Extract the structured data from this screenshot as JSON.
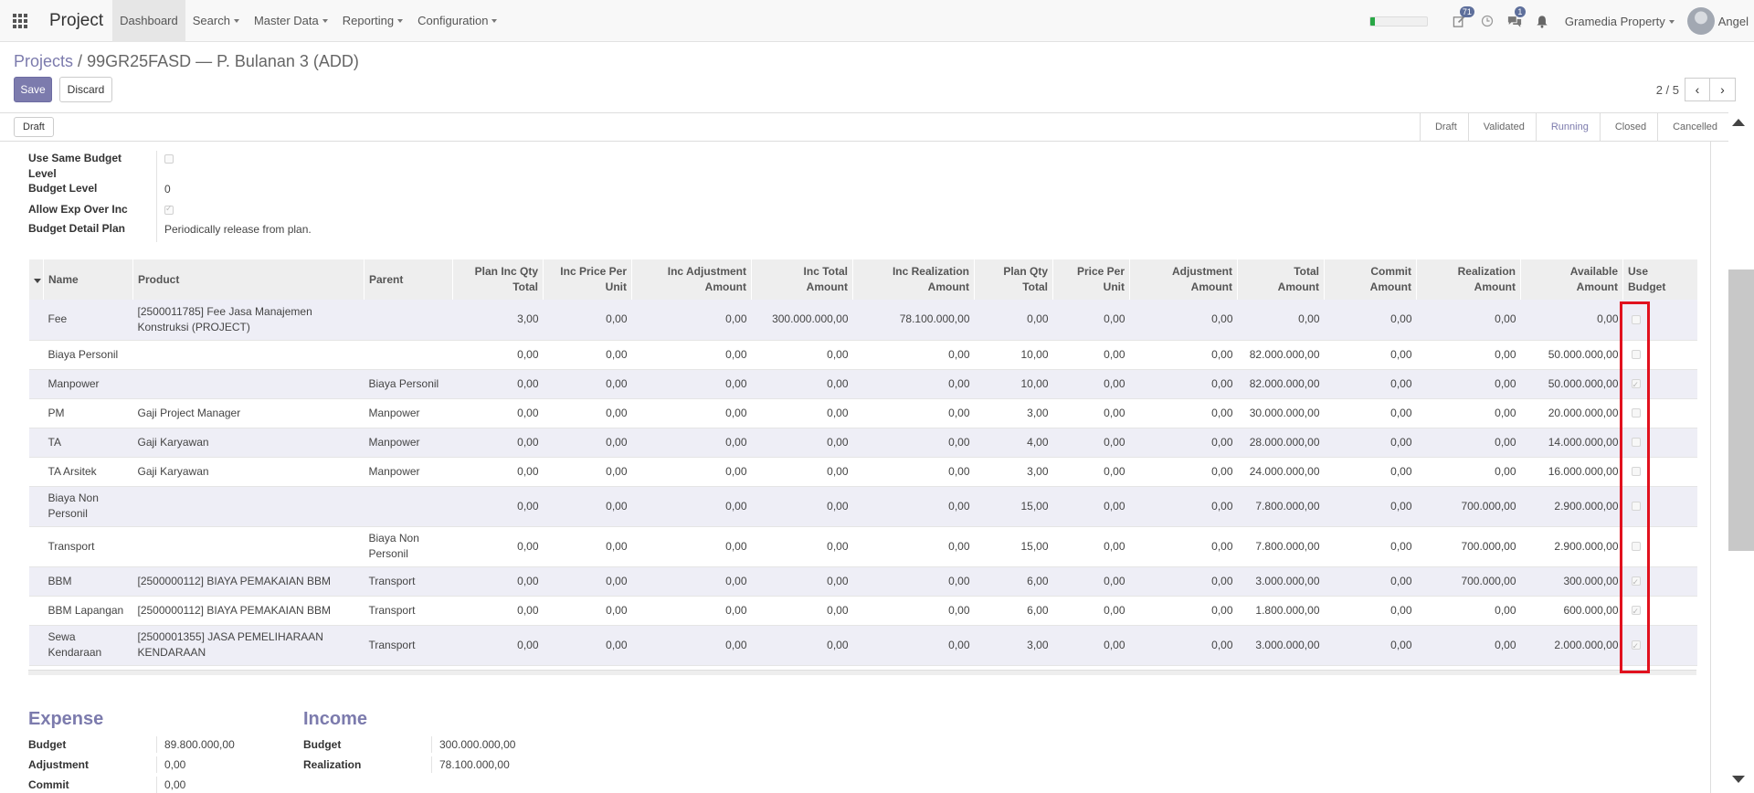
{
  "navbar": {
    "app_title": "Project",
    "menu": [
      {
        "label": "Dashboard"
      },
      {
        "label": "Search"
      },
      {
        "label": "Master Data"
      },
      {
        "label": "Reporting"
      },
      {
        "label": "Configuration"
      }
    ],
    "progress_fraction": 0.08,
    "activity_badge": "71",
    "messages_badge": "1",
    "company": "Gramedia Property",
    "user": "Angel"
  },
  "breadcrumb": {
    "parent": "Projects",
    "separator": "/",
    "current": "99GR25FASD — P. Bulanan 3 (ADD)"
  },
  "buttons": {
    "save": "Save",
    "discard": "Discard",
    "draft": "Draft"
  },
  "pager": {
    "value": "2 / 5"
  },
  "stages": [
    {
      "label": "Draft"
    },
    {
      "label": "Validated"
    },
    {
      "label": "Running"
    },
    {
      "label": "Closed"
    },
    {
      "label": "Cancelled"
    }
  ],
  "fields": {
    "use_same_budget_level": {
      "label_line1": "Use Same Budget",
      "label_line2": "Level",
      "checked": false
    },
    "budget_level": {
      "label": "Budget Level",
      "value": "0"
    },
    "allow_exp_over_inc": {
      "label": "Allow Exp Over Inc",
      "checked": true
    },
    "budget_detail_plan": {
      "label": "Budget Detail Plan",
      "value": "Periodically release from plan."
    }
  },
  "table": {
    "headers": [
      {
        "line1": "Name",
        "line2": ""
      },
      {
        "line1": "Product",
        "line2": ""
      },
      {
        "line1": "Parent",
        "line2": ""
      },
      {
        "line1": "Plan Inc Qty",
        "line2": "Total"
      },
      {
        "line1": "Inc Price Per",
        "line2": "Unit"
      },
      {
        "line1": "Inc Adjustment",
        "line2": "Amount"
      },
      {
        "line1": "Inc Total",
        "line2": "Amount"
      },
      {
        "line1": "Inc Realization",
        "line2": "Amount"
      },
      {
        "line1": "Plan Qty",
        "line2": "Total"
      },
      {
        "line1": "Price Per",
        "line2": "Unit"
      },
      {
        "line1": "Adjustment",
        "line2": "Amount"
      },
      {
        "line1": "Total",
        "line2": "Amount"
      },
      {
        "line1": "Commit",
        "line2": "Amount"
      },
      {
        "line1": "Realization",
        "line2": "Amount"
      },
      {
        "line1": "Available",
        "line2": "Amount"
      },
      {
        "line1": "Use",
        "line2": "Budget"
      }
    ],
    "rows": [
      {
        "name": "Fee",
        "product": "[2500011785] Fee Jasa Manajemen Konstruksi (PROJECT)",
        "parent": "",
        "plan_inc_qty": "3,00",
        "inc_price": "0,00",
        "inc_adj": "0,00",
        "inc_total": "300.000.000,00",
        "inc_real": "78.100.000,00",
        "plan_qty": "0,00",
        "price": "0,00",
        "adj": "0,00",
        "total": "0,00",
        "commit": "0,00",
        "real": "0,00",
        "avail": "0,00",
        "use_budget": false
      },
      {
        "name": "Biaya Personil",
        "product": "",
        "parent": "",
        "plan_inc_qty": "0,00",
        "inc_price": "0,00",
        "inc_adj": "0,00",
        "inc_total": "0,00",
        "inc_real": "0,00",
        "plan_qty": "10,00",
        "price": "0,00",
        "adj": "0,00",
        "total": "82.000.000,00",
        "commit": "0,00",
        "real": "0,00",
        "avail": "50.000.000,00",
        "use_budget": false
      },
      {
        "name": "Manpower",
        "product": "",
        "parent": "Biaya Personil",
        "plan_inc_qty": "0,00",
        "inc_price": "0,00",
        "inc_adj": "0,00",
        "inc_total": "0,00",
        "inc_real": "0,00",
        "plan_qty": "10,00",
        "price": "0,00",
        "adj": "0,00",
        "total": "82.000.000,00",
        "commit": "0,00",
        "real": "0,00",
        "avail": "50.000.000,00",
        "use_budget": true
      },
      {
        "name": "PM",
        "product": "Gaji Project Manager",
        "parent": "Manpower",
        "plan_inc_qty": "0,00",
        "inc_price": "0,00",
        "inc_adj": "0,00",
        "inc_total": "0,00",
        "inc_real": "0,00",
        "plan_qty": "3,00",
        "price": "0,00",
        "adj": "0,00",
        "total": "30.000.000,00",
        "commit": "0,00",
        "real": "0,00",
        "avail": "20.000.000,00",
        "use_budget": false
      },
      {
        "name": "TA",
        "product": "Gaji Karyawan",
        "parent": "Manpower",
        "plan_inc_qty": "0,00",
        "inc_price": "0,00",
        "inc_adj": "0,00",
        "inc_total": "0,00",
        "inc_real": "0,00",
        "plan_qty": "4,00",
        "price": "0,00",
        "adj": "0,00",
        "total": "28.000.000,00",
        "commit": "0,00",
        "real": "0,00",
        "avail": "14.000.000,00",
        "use_budget": false
      },
      {
        "name": "TA Arsitek",
        "product": "Gaji Karyawan",
        "parent": "Manpower",
        "plan_inc_qty": "0,00",
        "inc_price": "0,00",
        "inc_adj": "0,00",
        "inc_total": "0,00",
        "inc_real": "0,00",
        "plan_qty": "3,00",
        "price": "0,00",
        "adj": "0,00",
        "total": "24.000.000,00",
        "commit": "0,00",
        "real": "0,00",
        "avail": "16.000.000,00",
        "use_budget": false
      },
      {
        "name": "Biaya Non Personil",
        "product": "",
        "parent": "",
        "plan_inc_qty": "0,00",
        "inc_price": "0,00",
        "inc_adj": "0,00",
        "inc_total": "0,00",
        "inc_real": "0,00",
        "plan_qty": "15,00",
        "price": "0,00",
        "adj": "0,00",
        "total": "7.800.000,00",
        "commit": "0,00",
        "real": "700.000,00",
        "avail": "2.900.000,00",
        "use_budget": false
      },
      {
        "name": "Transport",
        "product": "",
        "parent": "Biaya Non Personil",
        "plan_inc_qty": "0,00",
        "inc_price": "0,00",
        "inc_adj": "0,00",
        "inc_total": "0,00",
        "inc_real": "0,00",
        "plan_qty": "15,00",
        "price": "0,00",
        "adj": "0,00",
        "total": "7.800.000,00",
        "commit": "0,00",
        "real": "700.000,00",
        "avail": "2.900.000,00",
        "use_budget": false
      },
      {
        "name": "BBM",
        "product": "[2500000112] BIAYA PEMAKAIAN BBM",
        "parent": "Transport",
        "plan_inc_qty": "0,00",
        "inc_price": "0,00",
        "inc_adj": "0,00",
        "inc_total": "0,00",
        "inc_real": "0,00",
        "plan_qty": "6,00",
        "price": "0,00",
        "adj": "0,00",
        "total": "3.000.000,00",
        "commit": "0,00",
        "real": "700.000,00",
        "avail": "300.000,00",
        "use_budget": true
      },
      {
        "name": "BBM Lapangan",
        "product": "[2500000112] BIAYA PEMAKAIAN BBM",
        "parent": "Transport",
        "plan_inc_qty": "0,00",
        "inc_price": "0,00",
        "inc_adj": "0,00",
        "inc_total": "0,00",
        "inc_real": "0,00",
        "plan_qty": "6,00",
        "price": "0,00",
        "adj": "0,00",
        "total": "1.800.000,00",
        "commit": "0,00",
        "real": "0,00",
        "avail": "600.000,00",
        "use_budget": true
      },
      {
        "name": "Sewa Kendaraan",
        "product": "[2500001355] JASA PEMELIHARAAN KENDARAAN",
        "parent": "Transport",
        "plan_inc_qty": "0,00",
        "inc_price": "0,00",
        "inc_adj": "0,00",
        "inc_total": "0,00",
        "inc_real": "0,00",
        "plan_qty": "3,00",
        "price": "0,00",
        "adj": "0,00",
        "total": "3.000.000,00",
        "commit": "0,00",
        "real": "0,00",
        "avail": "2.000.000,00",
        "use_budget": true
      }
    ]
  },
  "summary": {
    "expense": {
      "title": "Expense",
      "rows": [
        {
          "label": "Budget",
          "value": "89.800.000,00"
        },
        {
          "label": "Adjustment",
          "value": "0,00"
        },
        {
          "label": "Commit",
          "value": "0,00"
        }
      ]
    },
    "income": {
      "title": "Income",
      "rows": [
        {
          "label": "Budget",
          "value": "300.000.000,00"
        },
        {
          "label": "Realization",
          "value": "78.100.000,00"
        }
      ]
    }
  }
}
